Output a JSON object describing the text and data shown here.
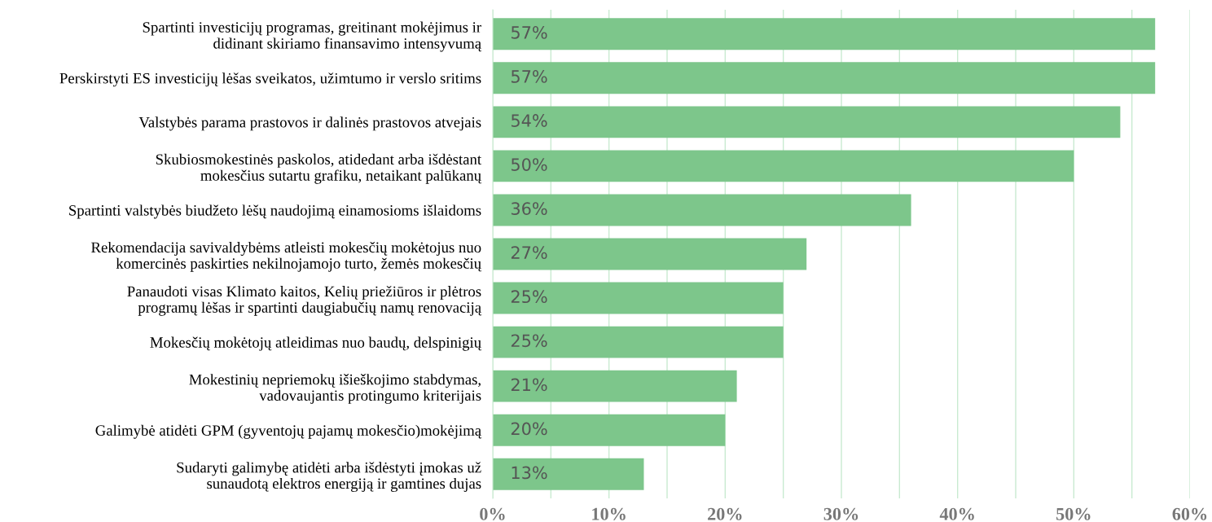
{
  "chart_data": {
    "type": "bar",
    "orientation": "horizontal",
    "color": "#7dc68b",
    "grid": "x",
    "value_labels": [
      "57%",
      "57%",
      "54%",
      "50%",
      "36%",
      "27%",
      "25%",
      "25%",
      "21%",
      "20%",
      "13%"
    ],
    "categories": [
      "Spartinti investicijų programas, greitinant mokėjimus ir\ndidinant skiriamo finansavimo intensyvumą",
      "Perskirstyti ES investicijų lėšas sveikatos, užimtumo ir verslo sritims",
      "Valstybės parama prastovos ir dalinės prastovos atvejais",
      "Skubiosmokestinės paskolos, atidedant arba išdėstant\nmokesčius sutartu grafiku, netaikant palūkanų",
      "Spartinti valstybės biudžeto lėšų naudojimą einamosioms išlaidoms",
      "Rekomendacija savivaldybėms atleisti mokesčių mokėtojus nuo\nkomercinės paskirties nekilnojamojo turto, žemės mokesčių",
      "Panaudoti visas Klimato kaitos, Kelių priežiūros ir plėtros\nprogramų lėšas ir spartinti daugiabučių namų renovaciją",
      "Mokesčių mokėtojų atleidimas nuo baudų, delspinigių",
      "Mokestinių nepriemokų išieškojimo stabdymas,\nvadovaujantis protingumo kriterijais",
      "Galimybė atidėti GPM (gyventojų pajamų mokesčio)mokėjimą",
      "Sudaryti galimybę atidėti arba išdėstyti įmokas už\nsunaudotą elektros energiją ir gamtines dujas"
    ],
    "values": [
      57,
      57,
      54,
      50,
      36,
      27,
      25,
      25,
      21,
      20,
      13
    ],
    "xlim": [
      0,
      60
    ],
    "xticks": [
      {
        "value": 0,
        "label": "0%"
      },
      {
        "value": 5,
        "label": null
      },
      {
        "value": 10,
        "label": "10%"
      },
      {
        "value": 15,
        "label": null
      },
      {
        "value": 20,
        "label": "20%"
      },
      {
        "value": 25,
        "label": null
      },
      {
        "value": 30,
        "label": "30%"
      },
      {
        "value": 35,
        "label": null
      },
      {
        "value": 40,
        "label": "40%"
      },
      {
        "value": 45,
        "label": null
      },
      {
        "value": 50,
        "label": "50%"
      },
      {
        "value": 55,
        "label": null
      },
      {
        "value": 60,
        "label": "60%"
      }
    ]
  }
}
